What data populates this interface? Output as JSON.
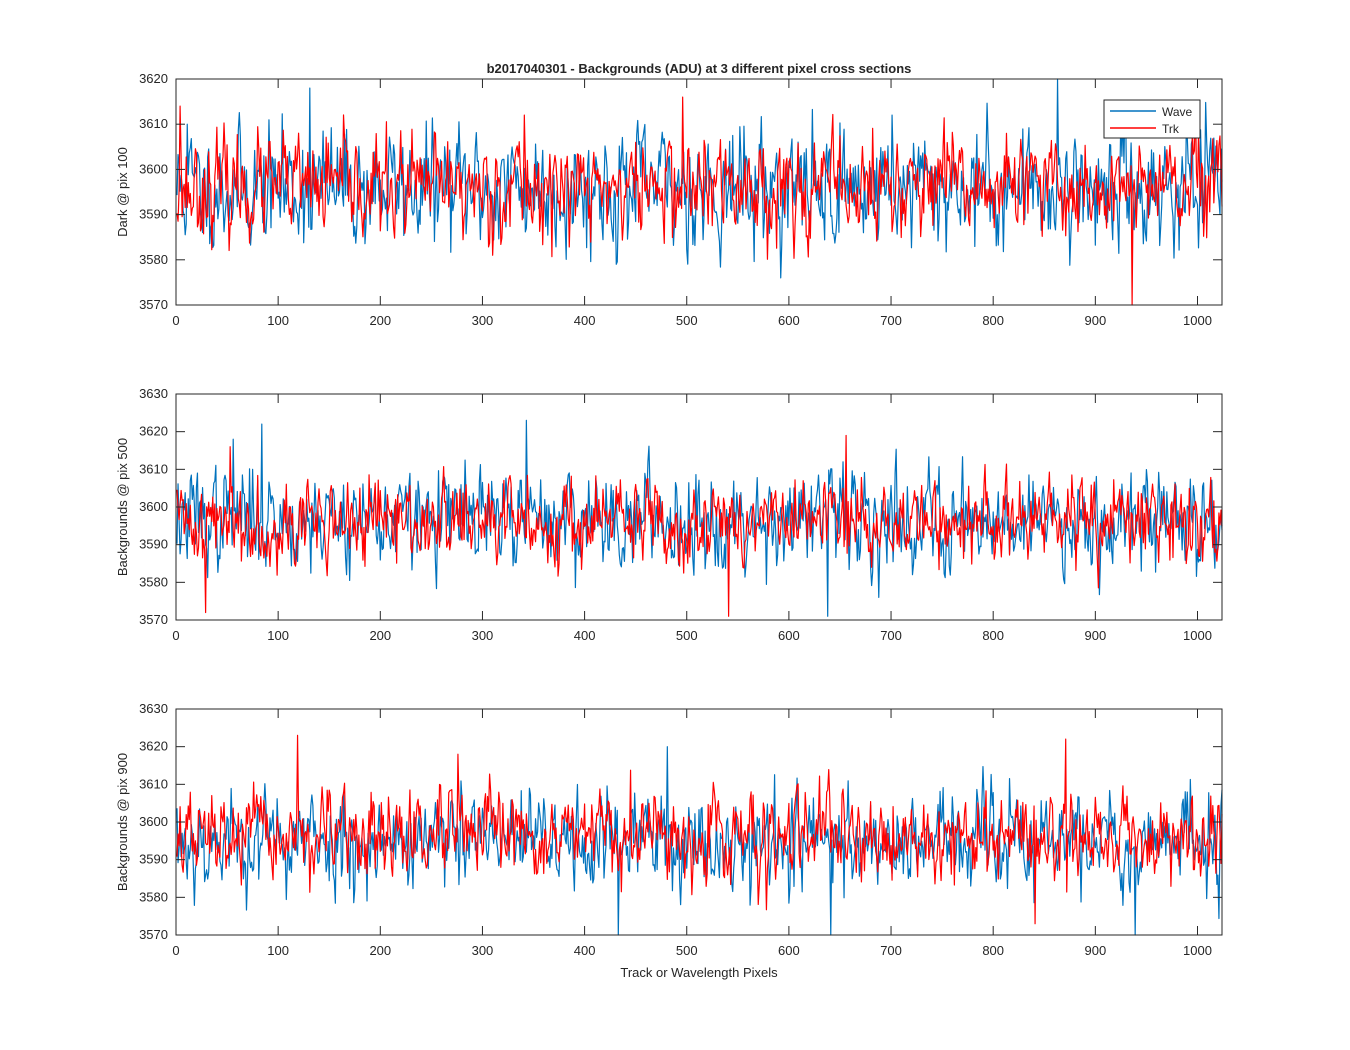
{
  "figure": {
    "title": "b2017040301 - Backgrounds (ADU) at 3 different pixel cross sections",
    "xlabel": "Track or Wavelength Pixels"
  },
  "legend": {
    "placement": "top-right",
    "entries": [
      {
        "name": "Wave",
        "color": "#0072BD"
      },
      {
        "name": "Trk",
        "color": "#FF0000"
      }
    ]
  },
  "chart_data": [
    {
      "type": "line",
      "title": "b2017040301 - Backgrounds (ADU) at 3 different pixel cross sections",
      "xlabel": "",
      "ylabel": "Dark @ pix 100",
      "xlim": [
        0,
        1024
      ],
      "ylim": [
        3570,
        3620
      ],
      "xticks": [
        0,
        100,
        200,
        300,
        400,
        500,
        600,
        700,
        800,
        900,
        1000
      ],
      "yticks": [
        3570,
        3580,
        3590,
        3600,
        3610,
        3620
      ],
      "n_points": 1024,
      "series": [
        {
          "name": "Wave",
          "color": "#0072BD",
          "mean": 3596,
          "std": 6.5,
          "min": 3576,
          "max": 3620,
          "seed": 11,
          "peaks": [
            [
              130,
              3618
            ],
            [
              862,
              3620
            ],
            [
              10,
              3610
            ],
            [
              700,
              3612
            ]
          ]
        },
        {
          "name": "Trk",
          "color": "#FF0000",
          "mean": 3596,
          "std": 5.5,
          "min": 3570,
          "max": 3616,
          "seed": 23,
          "peaks": [
            [
              495,
              3616
            ],
            [
              3,
              3614
            ],
            [
              935,
              3570
            ],
            [
              340,
              3612
            ]
          ]
        }
      ]
    },
    {
      "type": "line",
      "title": "",
      "xlabel": "",
      "ylabel": "Backgrounds @ pix 500",
      "xlim": [
        0,
        1024
      ],
      "ylim": [
        3570,
        3630
      ],
      "xticks": [
        0,
        100,
        200,
        300,
        400,
        500,
        600,
        700,
        800,
        900,
        1000
      ],
      "yticks": [
        3570,
        3580,
        3590,
        3600,
        3610,
        3620,
        3630
      ],
      "n_points": 1024,
      "series": [
        {
          "name": "Wave",
          "color": "#0072BD",
          "mean": 3597,
          "std": 6.5,
          "min": 3571,
          "max": 3623,
          "seed": 37,
          "peaks": [
            [
              83,
              3622
            ],
            [
              342,
              3623
            ],
            [
              637,
              3571
            ],
            [
              55,
              3618
            ]
          ]
        },
        {
          "name": "Trk",
          "color": "#FF0000",
          "mean": 3596,
          "std": 5.5,
          "min": 3571,
          "max": 3619,
          "seed": 41,
          "peaks": [
            [
              655,
              3619
            ],
            [
              540,
              3571
            ],
            [
              28,
              3572
            ],
            [
              52,
              3616
            ]
          ]
        }
      ]
    },
    {
      "type": "line",
      "title": "",
      "xlabel": "Track or Wavelength Pixels",
      "ylabel": "Backgrounds @ pix 900",
      "xlim": [
        0,
        1024
      ],
      "ylim": [
        3570,
        3630
      ],
      "xticks": [
        0,
        100,
        200,
        300,
        400,
        500,
        600,
        700,
        800,
        900,
        1000
      ],
      "yticks": [
        3570,
        3580,
        3590,
        3600,
        3610,
        3620,
        3630
      ],
      "n_points": 1024,
      "series": [
        {
          "name": "Wave",
          "color": "#0072BD",
          "mean": 3595,
          "std": 6.5,
          "min": 3570,
          "max": 3620,
          "seed": 53,
          "peaks": [
            [
              480,
              3620
            ],
            [
              432,
              3570
            ],
            [
              938,
              3570
            ],
            [
              640,
              3570
            ]
          ]
        },
        {
          "name": "Trk",
          "color": "#FF0000",
          "mean": 3596,
          "std": 5.5,
          "min": 3573,
          "max": 3623,
          "seed": 67,
          "peaks": [
            [
              118,
              3623
            ],
            [
              870,
              3622
            ],
            [
              840,
              3573
            ],
            [
              275,
              3618
            ]
          ]
        }
      ]
    }
  ]
}
